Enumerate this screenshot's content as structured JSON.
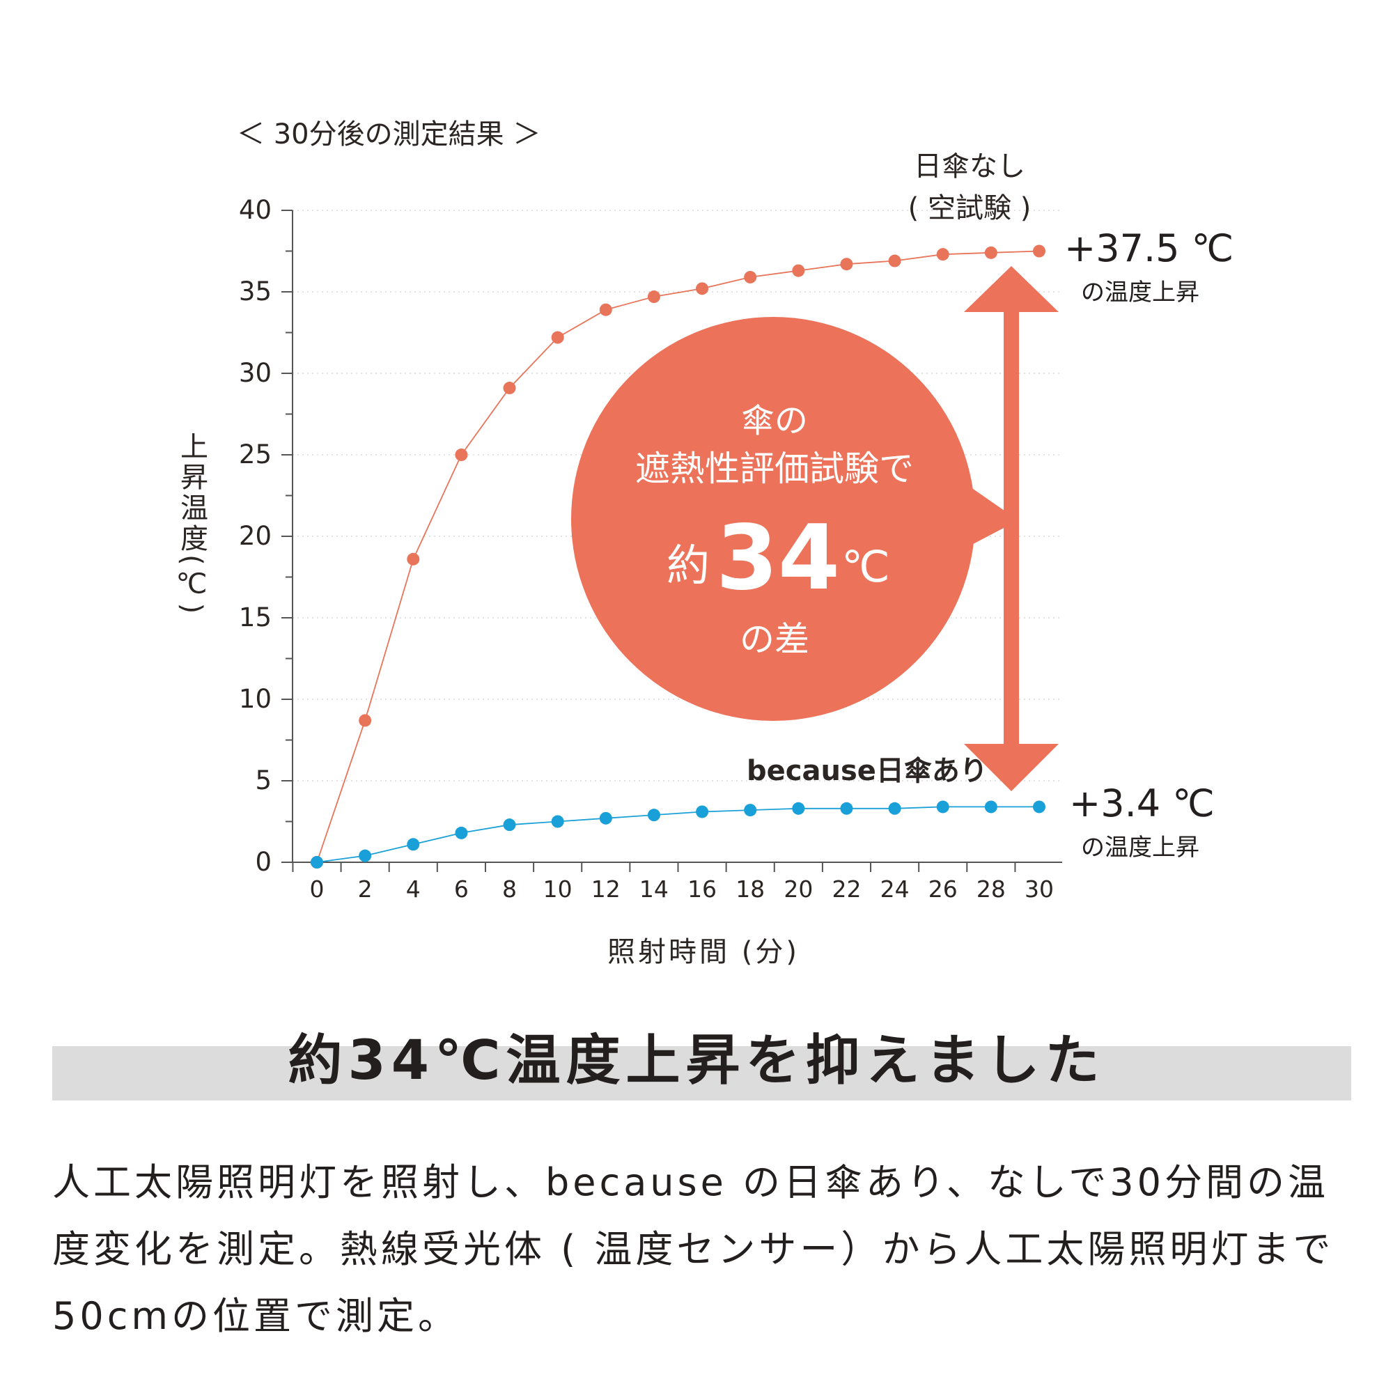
{
  "chart_data": {
    "type": "line",
    "title": "＜ 30分後の測定結果 ＞",
    "xlabel": "照射時間 (分)",
    "ylabel": "上昇温度(℃)",
    "xlim": [
      -2,
      31
    ],
    "ylim": [
      0,
      40
    ],
    "x_ticks": [
      0,
      2,
      4,
      6,
      8,
      10,
      12,
      14,
      16,
      18,
      20,
      22,
      24,
      26,
      28,
      30
    ],
    "y_ticks": [
      0,
      5,
      10,
      15,
      20,
      25,
      30,
      35,
      40
    ],
    "grid": "horizontal dotted",
    "x": [
      0,
      2,
      4,
      6,
      8,
      10,
      12,
      14,
      16,
      18,
      20,
      22,
      24,
      26,
      28,
      30
    ],
    "series": [
      {
        "name": "日傘なし (空試験)",
        "color": "#e8745a",
        "values": [
          0,
          8.7,
          18.6,
          25.0,
          29.1,
          32.2,
          33.9,
          34.7,
          35.2,
          35.9,
          36.3,
          36.7,
          36.9,
          37.3,
          37.4,
          37.5
        ]
      },
      {
        "name": "because日傘あり",
        "color": "#1aa0d8",
        "values": [
          0,
          0.4,
          1.1,
          1.8,
          2.3,
          2.5,
          2.7,
          2.9,
          3.1,
          3.2,
          3.3,
          3.3,
          3.3,
          3.4,
          3.4,
          3.4
        ]
      }
    ],
    "annotations": {
      "series1_label_line1": "日傘なし",
      "series1_label_line2": "( 空試験 )",
      "series2_label": "because日傘あり",
      "high_value": "+37.5 ℃",
      "high_caption": "の温度上昇",
      "low_value": "+3.4 ℃",
      "low_caption": "の温度上昇",
      "bubble_line1": "傘の",
      "bubble_line2": "遮熱性評価試験で",
      "bubble_prefix": "約",
      "bubble_number": "34",
      "bubble_unit": "℃",
      "bubble_line4": "の差"
    },
    "accent_color": "#ec725a"
  },
  "headline": "約34℃温度上昇を抑えました",
  "description": "人工太陽照明灯を照射し、because の日傘あり、なしで30分間の温度変化を測定。熱線受光体 ( 温度センサー）から人工太陽照明灯まで 50cmの位置で測定。"
}
